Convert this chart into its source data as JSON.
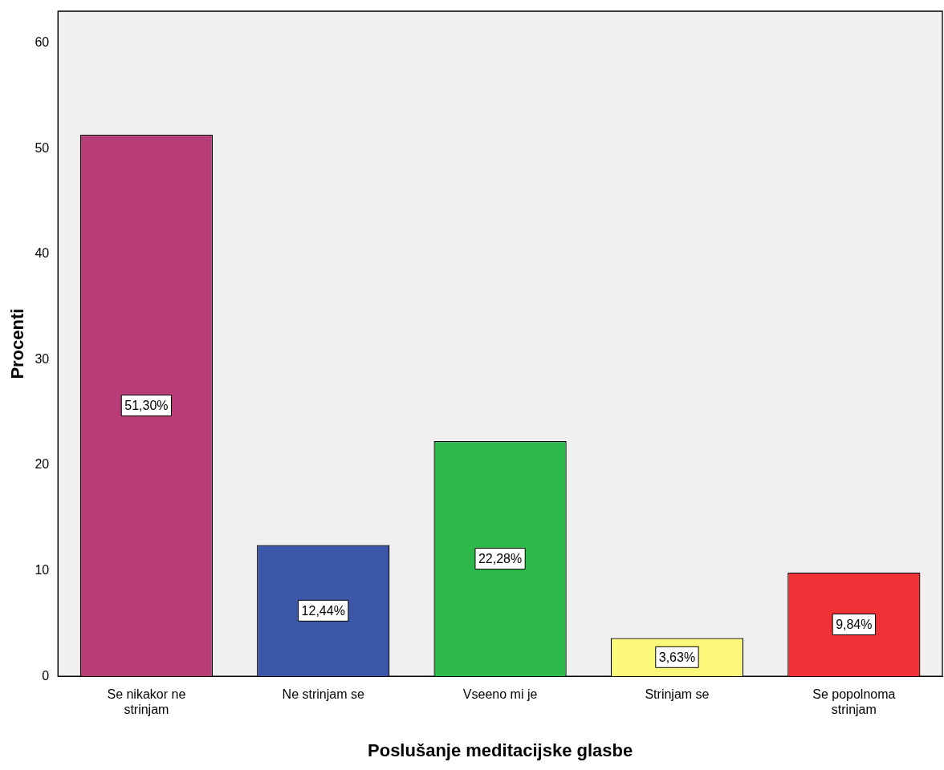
{
  "chart_data": {
    "type": "bar",
    "xlabel": "Poslušanje meditacijske glasbe",
    "ylabel": "Procenti",
    "categories": [
      "Se nikakor ne strinjam",
      "Ne strinjam se",
      "Vseeno mi je",
      "Strinjam se",
      "Se popolnoma strinjam"
    ],
    "values": [
      51.3,
      12.44,
      22.28,
      3.63,
      9.84
    ],
    "colors": [
      "#b83c78",
      "#3c56a8",
      "#2db84a",
      "#fbf87a",
      "#f03237"
    ],
    "value_labels": [
      "51,30%",
      "12,44%",
      "22,28%",
      "3,63%",
      "9,84%"
    ],
    "ylim": [
      0,
      63
    ],
    "yticks": [
      0,
      10,
      20,
      30,
      40,
      50,
      60
    ],
    "grid": false,
    "legend": false
  }
}
